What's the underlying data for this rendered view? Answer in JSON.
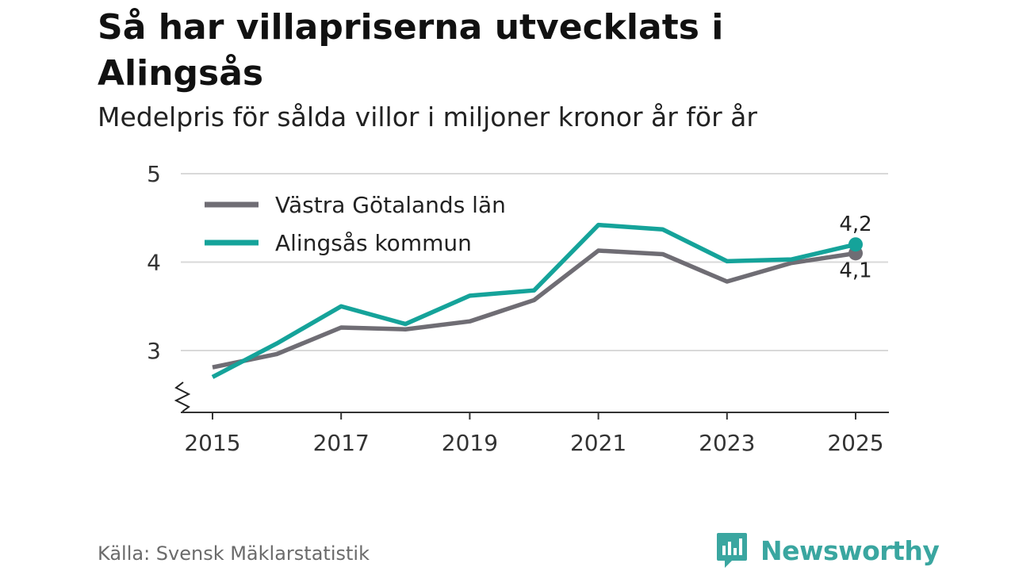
{
  "header": {
    "title": "Så har villapriserna utvecklats i Alingsås",
    "subtitle": "Medelpris för sålda villor i miljoner kronor år för år"
  },
  "footer": {
    "source": "Källa: Svensk Mäklarstatistik",
    "brand": "Newsworthy"
  },
  "colors": {
    "lan": "#6f6d74",
    "kommun": "#15a39a",
    "grid": "#d9d9d9",
    "brand": "#3aa6a0"
  },
  "chart_data": {
    "type": "line",
    "title": "Så har villapriserna utvecklats i Alingsås",
    "subtitle": "Medelpris för sålda villor i miljoner kronor år för år",
    "xlabel": "",
    "ylabel": "",
    "x": [
      2015,
      2016,
      2017,
      2018,
      2019,
      2020,
      2021,
      2022,
      2023,
      2024,
      2025
    ],
    "xticks": [
      2015,
      2017,
      2019,
      2021,
      2023,
      2025
    ],
    "ylim": [
      2.3,
      5
    ],
    "yticks": [
      3,
      4,
      5
    ],
    "axis_break": true,
    "grid": true,
    "legend": "top-left",
    "series": [
      {
        "name": "Västra Götalands län",
        "color": "#6f6d74",
        "values": [
          2.81,
          2.96,
          3.26,
          3.24,
          3.33,
          3.57,
          4.13,
          4.09,
          3.78,
          3.99,
          4.1
        ],
        "end_label": "4,1"
      },
      {
        "name": "Alingsås kommun",
        "color": "#15a39a",
        "values": [
          2.7,
          3.08,
          3.5,
          3.3,
          3.62,
          3.68,
          4.42,
          4.37,
          4.01,
          4.03,
          4.2
        ],
        "end_label": "4,2"
      }
    ]
  }
}
